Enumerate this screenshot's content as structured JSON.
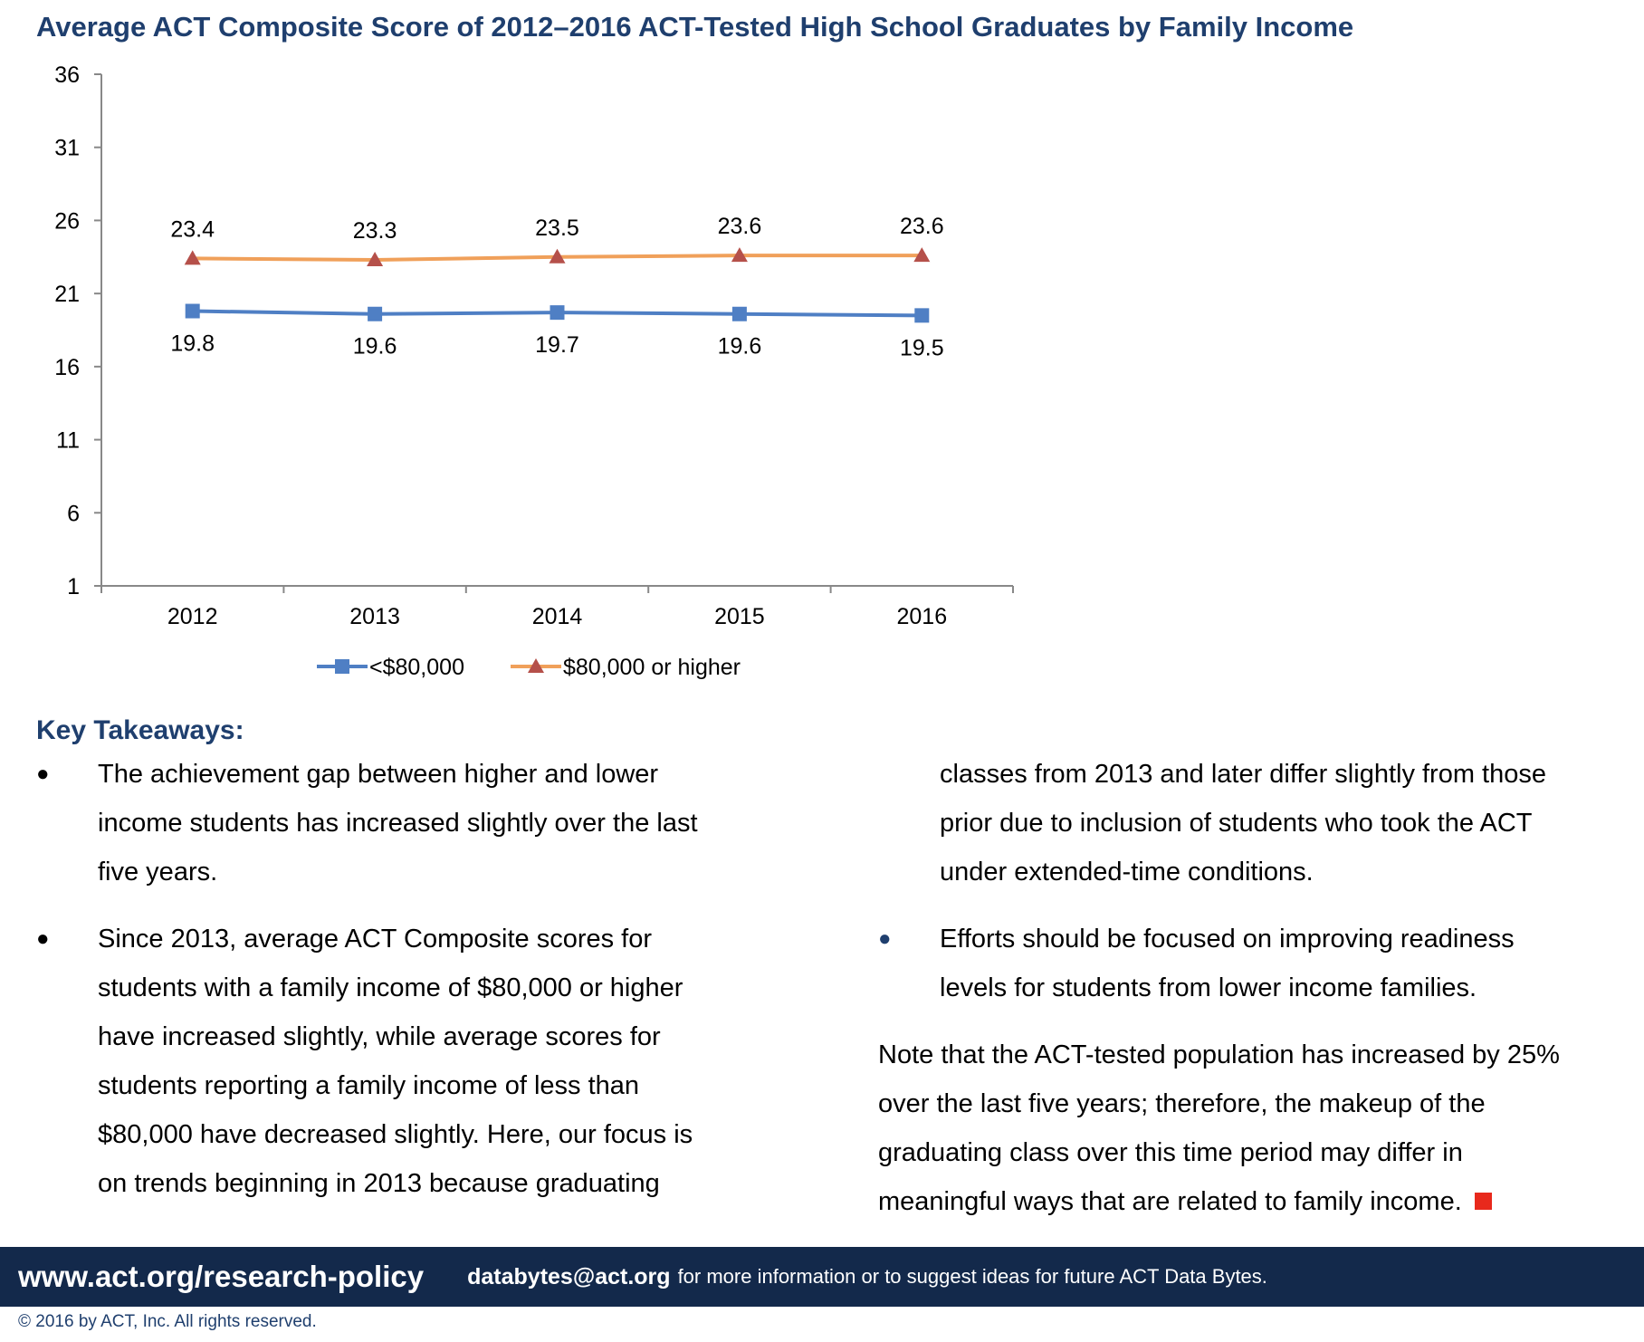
{
  "chart_data": {
    "type": "line",
    "title": "Average ACT Composite Score of 2012–2016 ACT-Tested High School Graduates by Family Income",
    "categories": [
      "2012",
      "2013",
      "2014",
      "2015",
      "2016"
    ],
    "y_ticks": [
      "1",
      "6",
      "11",
      "16",
      "21",
      "26",
      "31",
      "36"
    ],
    "ylim": [
      1,
      36
    ],
    "grid": false,
    "legend_position": "bottom",
    "series": [
      {
        "name": "<$80,000",
        "values": [
          19.8,
          19.6,
          19.7,
          19.6,
          19.5
        ],
        "labels": [
          "19.8",
          "19.6",
          "19.7",
          "19.6",
          "19.5"
        ],
        "marker": "square",
        "color": "#4f7fc4"
      },
      {
        "name": "$80,000 or higher",
        "values": [
          23.4,
          23.3,
          23.5,
          23.6,
          23.6
        ],
        "labels": [
          "23.4",
          "23.3",
          "23.5",
          "23.6",
          "23.6"
        ],
        "marker": "triangle",
        "color": "#f0a05a",
        "marker_color": "#b5504a"
      }
    ]
  },
  "takeaways": {
    "heading": "Key Takeaways:",
    "bullet_char": "●",
    "item1_lines": [
      "The achievement gap between higher and lower",
      "income students has increased slightly over the last",
      "five years."
    ],
    "item2_lines": [
      "Since 2013, average ACT Composite scores for",
      "students with a family income of $80,000 or higher",
      "have increased slightly, while average scores for",
      "students reporting a family income of less than",
      "$80,000 have decreased slightly.  Here, our focus is",
      "on trends beginning in 2013 because graduating"
    ],
    "item2_cont_lines": [
      "classes from 2013 and later differ slightly from those",
      "prior due to inclusion of students who took the ACT",
      "under extended-time conditions."
    ],
    "item3_lines": [
      "Efforts should be focused on improving readiness",
      "levels for students from lower income families."
    ],
    "note_lines": [
      "Note that the ACT-tested population has increased by 25%",
      "over the last five years; therefore, the makeup of the",
      "graduating class over this time period may differ in",
      "meaningful ways that are related to family income."
    ]
  },
  "footer": {
    "url": "www.act.org/research-policy",
    "email": "databytes@act.org",
    "message": "for more information or to suggest ideas for future ACT Data Bytes.",
    "copyright": "© 2016 by ACT, Inc. All rights reserved."
  }
}
